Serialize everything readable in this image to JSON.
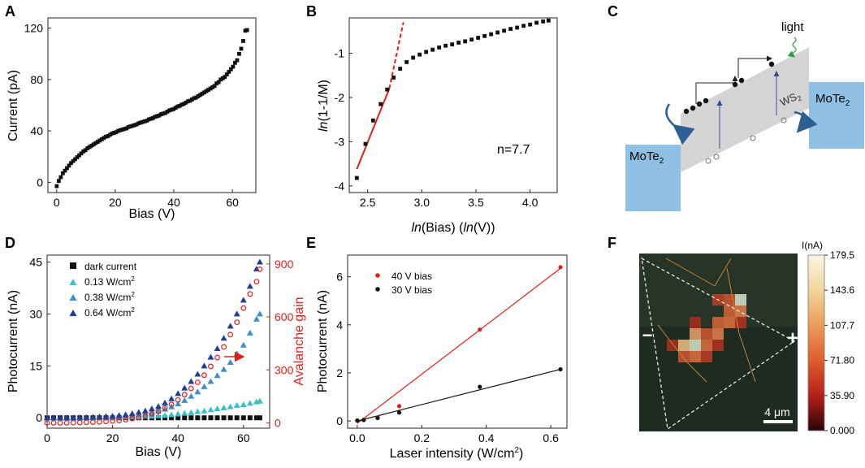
{
  "colors": {
    "black": "#111111",
    "red": "#e0201b",
    "cyan": "#3cc0c8",
    "blue1": "#3a8fd0",
    "blue2": "#1c3f9a",
    "panel_blue": "#8fc0e4",
    "gray": "#d4d4d4",
    "green_arrow": "#2e9e4a"
  },
  "chart_data": [
    {
      "panel": "A",
      "type": "scatter",
      "xlabel": "Bias (V)",
      "ylabel": "Current (pA)",
      "xlim": [
        -3,
        68
      ],
      "ylim": [
        -8,
        128
      ],
      "xticks": [
        0,
        20,
        40,
        60
      ],
      "yticks": [
        0,
        40,
        80,
        120
      ],
      "series": [
        {
          "name": "current",
          "marker": "square",
          "color": "#111111",
          "x": [
            0,
            0.7,
            1.4,
            2.1,
            2.8,
            3.5,
            4.2,
            4.9,
            5.6,
            6.3,
            7.0,
            7.7,
            8.4,
            9.1,
            9.8,
            10.5,
            11.2,
            11.9,
            12.6,
            13.3,
            14.0,
            14.7,
            15.4,
            16.1,
            16.8,
            17.5,
            18.2,
            18.9,
            19.6,
            20.3,
            21.0,
            21.7,
            22.4,
            23.1,
            23.8,
            24.5,
            25.2,
            25.9,
            26.6,
            27.3,
            28.0,
            28.7,
            29.4,
            30.1,
            30.8,
            31.5,
            32.2,
            32.9,
            33.6,
            34.3,
            35.0,
            35.7,
            36.4,
            37.1,
            37.8,
            38.5,
            39.2,
            39.9,
            40.6,
            41.3,
            42.0,
            42.7,
            43.4,
            44.1,
            44.8,
            45.5,
            46.2,
            46.9,
            47.6,
            48.3,
            49.0,
            49.7,
            50.4,
            51.1,
            51.8,
            52.5,
            53.2,
            53.9,
            54.6,
            55.3,
            56.0,
            56.7,
            57.4,
            58.1,
            58.8,
            59.5,
            60.2,
            60.9,
            61.6,
            62.3,
            63.0,
            63.7,
            64.4,
            65.0
          ],
          "y": [
            -3,
            1,
            4,
            7,
            9,
            11,
            13,
            15,
            16.5,
            18,
            19.5,
            21,
            22.5,
            24,
            25,
            26.5,
            27.5,
            28.5,
            29.5,
            30.5,
            31.5,
            32.5,
            33.5,
            34.5,
            35.5,
            36,
            37,
            38,
            38.5,
            39,
            40,
            40.5,
            41,
            41.5,
            42,
            43,
            43.5,
            44,
            44.5,
            45,
            46,
            46.5,
            47,
            47.5,
            48,
            49,
            49.5,
            50,
            51,
            51.5,
            52,
            53,
            53.5,
            54,
            55,
            56,
            56.5,
            57,
            58,
            59,
            59.5,
            60.5,
            61,
            62,
            63,
            63.5,
            64.5,
            65.5,
            66,
            67,
            68,
            69,
            70,
            71,
            72,
            73,
            74,
            75,
            77,
            78,
            80,
            81,
            82,
            84,
            86,
            88,
            90,
            93,
            95,
            100,
            104,
            110,
            118,
            118.5
          ]
        }
      ]
    },
    {
      "panel": "B",
      "type": "scatter",
      "xlabel": "ln(Bias) (ln(V))",
      "ylabel": "ln(1-1/M)",
      "xlim": [
        2.33,
        4.25
      ],
      "ylim": [
        -4.15,
        -0.2
      ],
      "xticks": [
        2.5,
        3.0,
        3.5,
        4.0
      ],
      "yticks": [
        -4,
        -3,
        -2,
        -1
      ],
      "annotation": "n=7.7",
      "series": [
        {
          "name": "data",
          "marker": "square",
          "color": "#111111",
          "x": [
            2.4,
            2.48,
            2.55,
            2.62,
            2.68,
            2.74,
            2.8,
            2.86,
            2.92,
            2.98,
            3.04,
            3.1,
            3.16,
            3.22,
            3.28,
            3.34,
            3.4,
            3.46,
            3.52,
            3.58,
            3.64,
            3.7,
            3.76,
            3.82,
            3.88,
            3.94,
            4.0,
            4.06,
            4.12,
            4.17
          ],
          "y": [
            -3.82,
            -3.05,
            -2.52,
            -2.15,
            -1.82,
            -1.55,
            -1.35,
            -1.2,
            -1.1,
            -1.03,
            -0.97,
            -0.92,
            -0.87,
            -0.83,
            -0.8,
            -0.76,
            -0.73,
            -0.69,
            -0.65,
            -0.61,
            -0.57,
            -0.53,
            -0.49,
            -0.45,
            -0.42,
            -0.38,
            -0.35,
            -0.31,
            -0.28,
            -0.26
          ]
        }
      ],
      "fit": {
        "x": [
          2.4,
          2.7
        ],
        "y": [
          -3.62,
          -1.8
        ],
        "color": "#e0201b"
      },
      "fit_dashed": {
        "x": [
          2.7,
          2.83
        ],
        "y": [
          -1.8,
          -0.3
        ],
        "color": "#e0201b"
      }
    },
    {
      "panel": "D",
      "type": "scatter",
      "xlabel": "Bias (V)",
      "ylabel": "Photocurrent (nA)",
      "ylabel_right": "Avalanche gain",
      "xlim": [
        0,
        68
      ],
      "ylim": [
        -3,
        47
      ],
      "ylim_right": [
        -30,
        950
      ],
      "xticks": [
        0,
        20,
        40,
        60
      ],
      "yticks": [
        0,
        15,
        30,
        45
      ],
      "yticks_right": [
        0,
        300,
        600,
        900
      ],
      "x": [
        0,
        2,
        4,
        6,
        8,
        10,
        12,
        14,
        16,
        18,
        20,
        22,
        24,
        26,
        28,
        30,
        32,
        34,
        36,
        38,
        40,
        42,
        44,
        46,
        48,
        50,
        52,
        54,
        56,
        58,
        60,
        62,
        64,
        65
      ],
      "series": [
        {
          "name": "dark current",
          "marker": "square",
          "color": "#111111",
          "values": [
            0,
            0,
            0,
            0,
            0,
            0,
            0,
            0,
            0,
            0,
            0,
            0,
            0,
            0,
            0,
            0,
            0,
            0,
            0,
            0,
            0,
            0,
            0,
            0,
            0,
            0,
            0,
            0,
            0,
            0,
            0,
            0,
            0,
            0
          ]
        },
        {
          "name": "0.13 W/cm²",
          "marker": "triangle",
          "color": "#3cc0c8",
          "values": [
            0,
            0,
            0,
            0,
            0,
            0,
            0,
            0,
            0.1,
            0.1,
            0.1,
            0.2,
            0.2,
            0.3,
            0.3,
            0.4,
            0.5,
            0.6,
            0.7,
            0.9,
            1.1,
            1.3,
            1.5,
            1.8,
            2.0,
            2.3,
            2.6,
            2.9,
            3.2,
            3.6,
            3.8,
            4.2,
            4.6,
            4.8
          ]
        },
        {
          "name": "0.38 W/cm²",
          "marker": "triangle",
          "color": "#3a8fd0",
          "values": [
            0,
            0,
            0,
            0,
            0,
            0,
            0.1,
            0.1,
            0.2,
            0.2,
            0.3,
            0.4,
            0.5,
            0.7,
            0.9,
            1.1,
            1.5,
            1.9,
            2.5,
            3.2,
            4.0,
            5.0,
            6.2,
            7.5,
            9.0,
            10.5,
            12.2,
            14.0,
            16.0,
            18.5,
            21.0,
            24.5,
            28.5,
            30.0
          ]
        },
        {
          "name": "0.64 W/cm²",
          "marker": "triangle",
          "color": "#1c3f9a",
          "values": [
            0,
            0,
            0,
            0,
            0,
            0.1,
            0.1,
            0.2,
            0.3,
            0.4,
            0.5,
            0.7,
            0.9,
            1.2,
            1.6,
            2.0,
            2.6,
            3.3,
            4.3,
            5.5,
            7.0,
            8.6,
            10.5,
            12.6,
            15.0,
            17.5,
            20.0,
            23.0,
            26.5,
            30.0,
            34.0,
            38.0,
            43.0,
            45.0
          ]
        },
        {
          "name": "Avalanche gain",
          "axis": "right",
          "marker": "circle-open",
          "color": "#e0201b",
          "values": [
            0,
            0,
            0,
            0,
            1,
            2,
            3,
            4,
            6,
            8,
            11,
            14,
            18,
            24,
            31,
            40,
            52,
            66,
            84,
            105,
            130,
            160,
            195,
            230,
            270,
            320,
            370,
            430,
            500,
            570,
            650,
            730,
            800,
            870
          ]
        }
      ],
      "legend": [
        "dark current",
        "0.13 W/cm²",
        "0.38 W/cm²",
        "0.64 W/cm²"
      ]
    },
    {
      "panel": "E",
      "type": "scatter",
      "xlabel": "Laser intensity (W/cm²)",
      "ylabel": "Photocurrent (nA)",
      "xlim": [
        -0.03,
        0.65
      ],
      "ylim": [
        -0.3,
        6.9
      ],
      "xticks": [
        0.0,
        0.2,
        0.4,
        0.6
      ],
      "yticks": [
        0,
        2,
        4,
        6
      ],
      "series": [
        {
          "name": "40 V bias",
          "color": "#e0201b",
          "x": [
            0,
            0.02,
            0.063,
            0.13,
            0.38,
            0.63
          ],
          "values": [
            0.02,
            0.05,
            0.15,
            0.62,
            3.8,
            6.4
          ],
          "fit": [
            [
              0,
              -0.1
            ],
            [
              0.63,
              6.35
            ]
          ]
        },
        {
          "name": "30 V bias",
          "color": "#111111",
          "x": [
            0,
            0.02,
            0.063,
            0.13,
            0.38,
            0.63
          ],
          "values": [
            0.02,
            0.04,
            0.12,
            0.35,
            1.42,
            2.15
          ],
          "fit": [
            [
              0,
              0.0
            ],
            [
              0.63,
              2.15
            ]
          ]
        }
      ]
    },
    {
      "panel": "F",
      "type": "heatmap",
      "colorbar_label": "I(nA)",
      "colorbar_ticks": [
        "179.5",
        "143.6",
        "107.7",
        "71.80",
        "35.90",
        "0.000"
      ],
      "scalebar": "4 μm",
      "minus": "−",
      "plus": "+",
      "hot_pixels": [
        {
          "col": 7,
          "row": 3,
          "v": 0.95
        },
        {
          "col": 7,
          "row": 4,
          "v": 0.6
        },
        {
          "col": 6,
          "row": 4,
          "v": 0.5
        },
        {
          "col": 6,
          "row": 3,
          "v": 0.45
        },
        {
          "col": 5,
          "row": 3,
          "v": 0.35
        },
        {
          "col": 6,
          "row": 5,
          "v": 0.55
        },
        {
          "col": 5,
          "row": 5,
          "v": 0.5
        },
        {
          "col": 5,
          "row": 6,
          "v": 0.6
        },
        {
          "col": 4,
          "row": 6,
          "v": 0.45
        },
        {
          "col": 3,
          "row": 6,
          "v": 0.7
        },
        {
          "col": 2,
          "row": 7,
          "v": 0.8
        },
        {
          "col": 3,
          "row": 7,
          "v": 0.95
        },
        {
          "col": 4,
          "row": 7,
          "v": 0.55
        },
        {
          "col": 2,
          "row": 8,
          "v": 0.45
        },
        {
          "col": 3,
          "row": 8,
          "v": 0.55
        },
        {
          "col": 4,
          "row": 8,
          "v": 0.35
        },
        {
          "col": 5,
          "row": 7,
          "v": 0.3
        },
        {
          "col": 1,
          "row": 7,
          "v": 0.25
        },
        {
          "col": 3,
          "row": 5,
          "v": 0.25
        },
        {
          "col": 7,
          "row": 5,
          "v": 0.3
        }
      ]
    }
  ],
  "panels": {
    "A": "A",
    "B": "B",
    "C": "C",
    "D": "D",
    "E": "E",
    "F": "F"
  },
  "labels": {
    "a_xlabel": "Bias (V)",
    "a_ylabel": "Current (pA)",
    "b_xlabel_1": "ln",
    "b_xlabel_2": "(Bias) (",
    "b_xlabel_3": "ln",
    "b_xlabel_4": "(V))",
    "b_ylabel_1": "ln",
    "b_ylabel_2": "(1-1/M)",
    "b_annot": "n=7.7",
    "c_light": "light",
    "c_ws2": "WS",
    "c_ws2_sub": "2",
    "c_mote2_left": "MoTe",
    "c_mote2_left_sub": "2",
    "c_mote2_right": "MoTe",
    "c_mote2_right_sub": "2",
    "d_xlabel": "Bias (V)",
    "d_ylabel": "Photocurrent (nA)",
    "d_ylabel_right": "Avalanche gain",
    "d_leg_dark": "dark current",
    "d_leg_1": "0.13 W/cm",
    "d_leg_2": "0.38 W/cm",
    "d_leg_3": "0.64 W/cm",
    "sup2": "2",
    "e_xlabel": "Laser intensity (W/cm",
    "e_xlabel_end": ")",
    "e_ylabel": "Photocurrent (nA)",
    "e_leg_40": "40 V bias",
    "e_leg_30": "30 V bias",
    "f_cb_label": "I(nA)",
    "f_scale": "4 μm",
    "f_minus": "−",
    "f_plus": "+"
  },
  "ticks": {
    "a_x": [
      "0",
      "20",
      "40",
      "60"
    ],
    "a_y": [
      "0",
      "40",
      "80",
      "120"
    ],
    "b_x": [
      "2.5",
      "3.0",
      "3.5",
      "4.0"
    ],
    "b_y": [
      "-4",
      "-3",
      "-2",
      "-1"
    ],
    "d_x": [
      "0",
      "20",
      "40",
      "60"
    ],
    "d_y": [
      "0",
      "15",
      "30",
      "45"
    ],
    "d_yr": [
      "0",
      "300",
      "600",
      "900"
    ],
    "e_x": [
      "0.0",
      "0.2",
      "0.4",
      "0.6"
    ],
    "e_y": [
      "0",
      "2",
      "4",
      "6"
    ]
  }
}
